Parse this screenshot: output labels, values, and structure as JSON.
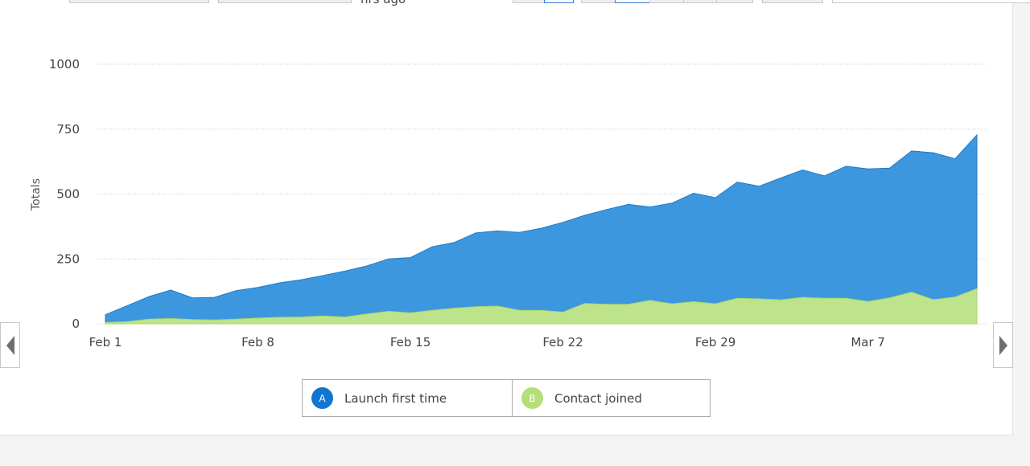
{
  "toolbar": {
    "partial_text": "hrs ago"
  },
  "chart_data": {
    "type": "area",
    "stacked": false,
    "ylabel": "Totals",
    "xlabel": "",
    "ylim": [
      0,
      1000
    ],
    "yticks": [
      0,
      250,
      500,
      750,
      1000
    ],
    "grid": "horizontal dotted",
    "x": [
      "Feb 1",
      "Feb 2",
      "Feb 3",
      "Feb 4",
      "Feb 5",
      "Feb 6",
      "Feb 7",
      "Feb 8",
      "Feb 9",
      "Feb 10",
      "Feb 11",
      "Feb 12",
      "Feb 13",
      "Feb 14",
      "Feb 15",
      "Feb 16",
      "Feb 17",
      "Feb 18",
      "Feb 19",
      "Feb 20",
      "Feb 21",
      "Feb 22",
      "Feb 23",
      "Feb 24",
      "Feb 25",
      "Feb 26",
      "Feb 27",
      "Feb 28",
      "Feb 29",
      "Mar 1",
      "Mar 2",
      "Mar 3",
      "Mar 4",
      "Mar 5",
      "Mar 6",
      "Mar 7",
      "Mar 8",
      "Mar 9",
      "Mar 10",
      "Mar 11",
      "Mar 12"
    ],
    "xtick_labels": [
      {
        "index": 0,
        "label": "Feb 1"
      },
      {
        "index": 7,
        "label": "Feb 8"
      },
      {
        "index": 14,
        "label": "Feb 15"
      },
      {
        "index": 21,
        "label": "Feb 22"
      },
      {
        "index": 28,
        "label": "Feb 29"
      },
      {
        "index": 35,
        "label": "Mar 7"
      }
    ],
    "series": [
      {
        "name": "Launch first time",
        "badge": "A",
        "color": "#2e8fdb",
        "values": [
          35,
          70,
          105,
          130,
          100,
          102,
          128,
          140,
          158,
          170,
          186,
          203,
          223,
          250,
          255,
          297,
          313,
          350,
          358,
          352,
          368,
          391,
          418,
          440,
          460,
          450,
          465,
          503,
          486,
          546,
          530,
          562,
          593,
          570,
          607,
          597,
          600,
          666,
          659,
          636,
          728
        ]
      },
      {
        "name": "Contact joined",
        "badge": "B",
        "color": "#bde48a",
        "values": [
          5,
          8,
          18,
          20,
          16,
          15,
          18,
          22,
          25,
          26,
          30,
          26,
          38,
          48,
          42,
          52,
          60,
          66,
          68,
          52,
          52,
          45,
          78,
          75,
          75,
          90,
          77,
          85,
          77,
          98,
          96,
          92,
          102,
          98,
          98,
          86,
          100,
          122,
          93,
          103,
          135
        ]
      }
    ],
    "legend_position": "bottom-center"
  },
  "navigation": {
    "prev_icon": "triangle-left",
    "next_icon": "triangle-right"
  }
}
